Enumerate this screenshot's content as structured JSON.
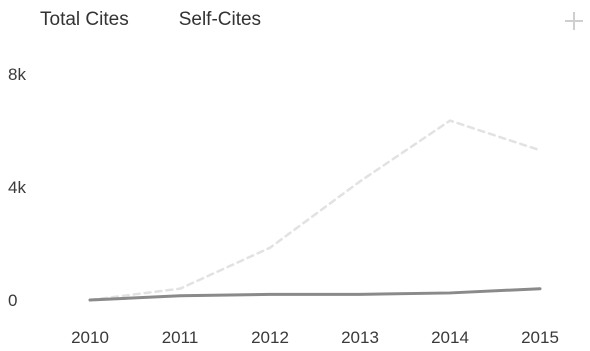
{
  "legend": {
    "total_label": "Total Cites",
    "self_label": "Self-Cites"
  },
  "icons": {
    "corner": "plus-icon"
  },
  "colors": {
    "total_line": "#e2e2e2",
    "self_line": "#8a8a8a"
  },
  "chart_data": {
    "type": "line",
    "x": [
      2010,
      2011,
      2012,
      2013,
      2014,
      2015
    ],
    "x_tick_labels": [
      "2010",
      "2011",
      "2012",
      "2013",
      "2014",
      "2015"
    ],
    "y_tick_values": [
      0,
      4000,
      8000
    ],
    "y_tick_labels": [
      "0",
      "4k",
      "8k"
    ],
    "ylim": [
      0,
      8000
    ],
    "grid": false,
    "legend_position": "top-left",
    "series": [
      {
        "name": "Total Cites",
        "values": [
          0,
          400,
          1850,
          4200,
          6350,
          5300
        ]
      },
      {
        "name": "Self-Cites",
        "values": [
          0,
          150,
          200,
          200,
          250,
          400
        ]
      }
    ]
  }
}
